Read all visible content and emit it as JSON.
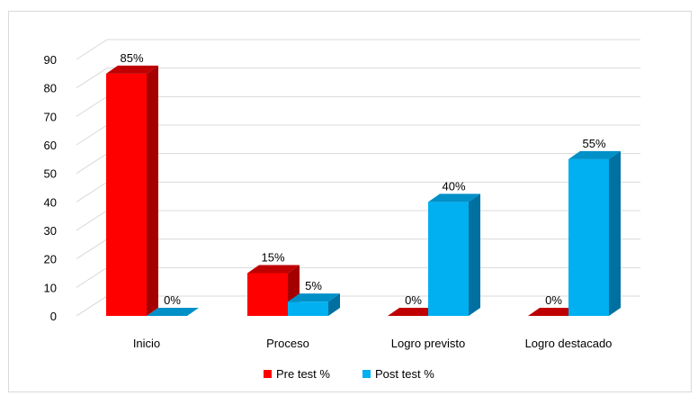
{
  "chart_data": {
    "type": "bar",
    "title": "",
    "xlabel": "",
    "ylabel": "",
    "categories": [
      "Inicio",
      "Proceso",
      "Logro previsto",
      "Logro destacado"
    ],
    "series": [
      {
        "name": "Pre test %",
        "values": [
          85,
          15,
          0,
          0
        ],
        "labels": [
          "85%",
          "15%",
          "0%",
          "0%"
        ],
        "color": "#ff0000",
        "side_color": "#a50000",
        "top_color": "#c00000"
      },
      {
        "name": "Post test %",
        "values": [
          0,
          5,
          40,
          55
        ],
        "labels": [
          "0%",
          "5%",
          "40%",
          "55%"
        ],
        "color": "#00b0f0",
        "side_color": "#0070a0",
        "top_color": "#0090c8"
      }
    ],
    "ylim": [
      0,
      90
    ],
    "yticks": [
      "0",
      "10",
      "20",
      "30",
      "40",
      "50",
      "60",
      "70",
      "80",
      "90"
    ],
    "grid": true,
    "legend_position": "bottom",
    "style": "3d-column"
  }
}
